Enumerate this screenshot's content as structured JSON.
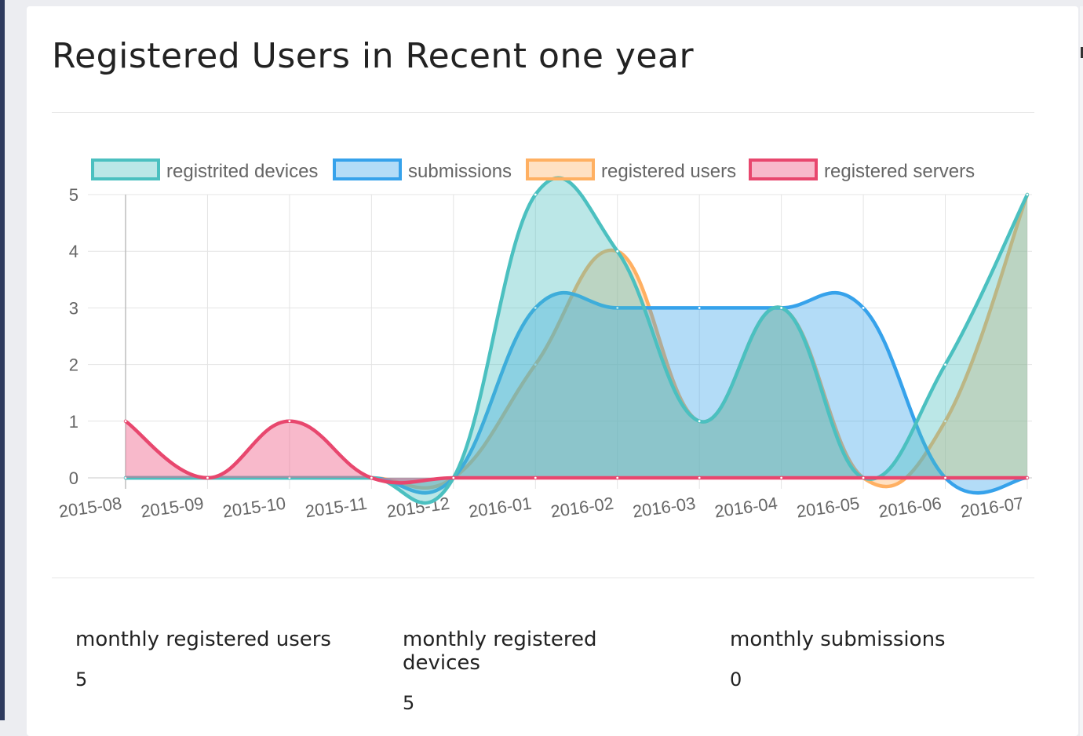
{
  "panel": {
    "title": "Registered Users in Recent one year"
  },
  "colors": {
    "registered_devices": "#4bc0c0",
    "submissions": "#36a2eb",
    "registered_users": "#ffb062",
    "registered_servers": "#e8476e"
  },
  "chart_data": {
    "type": "area",
    "title": "",
    "xlabel": "",
    "ylabel": "",
    "ylim": [
      0,
      5
    ],
    "yticks": [
      0,
      1,
      2,
      3,
      4,
      5
    ],
    "grid": true,
    "legend_position": "top",
    "categories": [
      "2015-08",
      "2015-09",
      "2015-10",
      "2015-11",
      "2015-12",
      "2016-01",
      "2016-02",
      "2016-03",
      "2016-04",
      "2016-05",
      "2016-06",
      "2016-07"
    ],
    "series": [
      {
        "name": "registrited devices",
        "color": "#4bc0c0",
        "fill": "rgba(75,192,192,0.38)",
        "values": [
          0,
          0,
          0,
          0,
          0,
          5,
          4,
          1,
          3,
          0,
          2,
          5
        ]
      },
      {
        "name": "submissions",
        "color": "#36a2eb",
        "fill": "rgba(54,162,235,0.38)",
        "values": [
          0,
          0,
          0,
          0,
          0,
          3,
          3,
          3,
          3,
          3,
          0,
          0
        ]
      },
      {
        "name": "registered users",
        "color": "#ffb062",
        "fill": "rgba(255,176,98,0.38)",
        "values": [
          0,
          0,
          0,
          0,
          0,
          2,
          4,
          1,
          3,
          0,
          1,
          5
        ]
      },
      {
        "name": "registered servers",
        "color": "#e8476e",
        "fill": "rgba(240,100,140,0.45)",
        "values": [
          1,
          0,
          1,
          0,
          0,
          0,
          0,
          0,
          0,
          0,
          0,
          0
        ]
      }
    ]
  },
  "stats": [
    {
      "label": "monthly registered users",
      "value": "5"
    },
    {
      "label": "monthly registered devices",
      "value": "5"
    },
    {
      "label": "monthly submissions",
      "value": "0"
    }
  ]
}
